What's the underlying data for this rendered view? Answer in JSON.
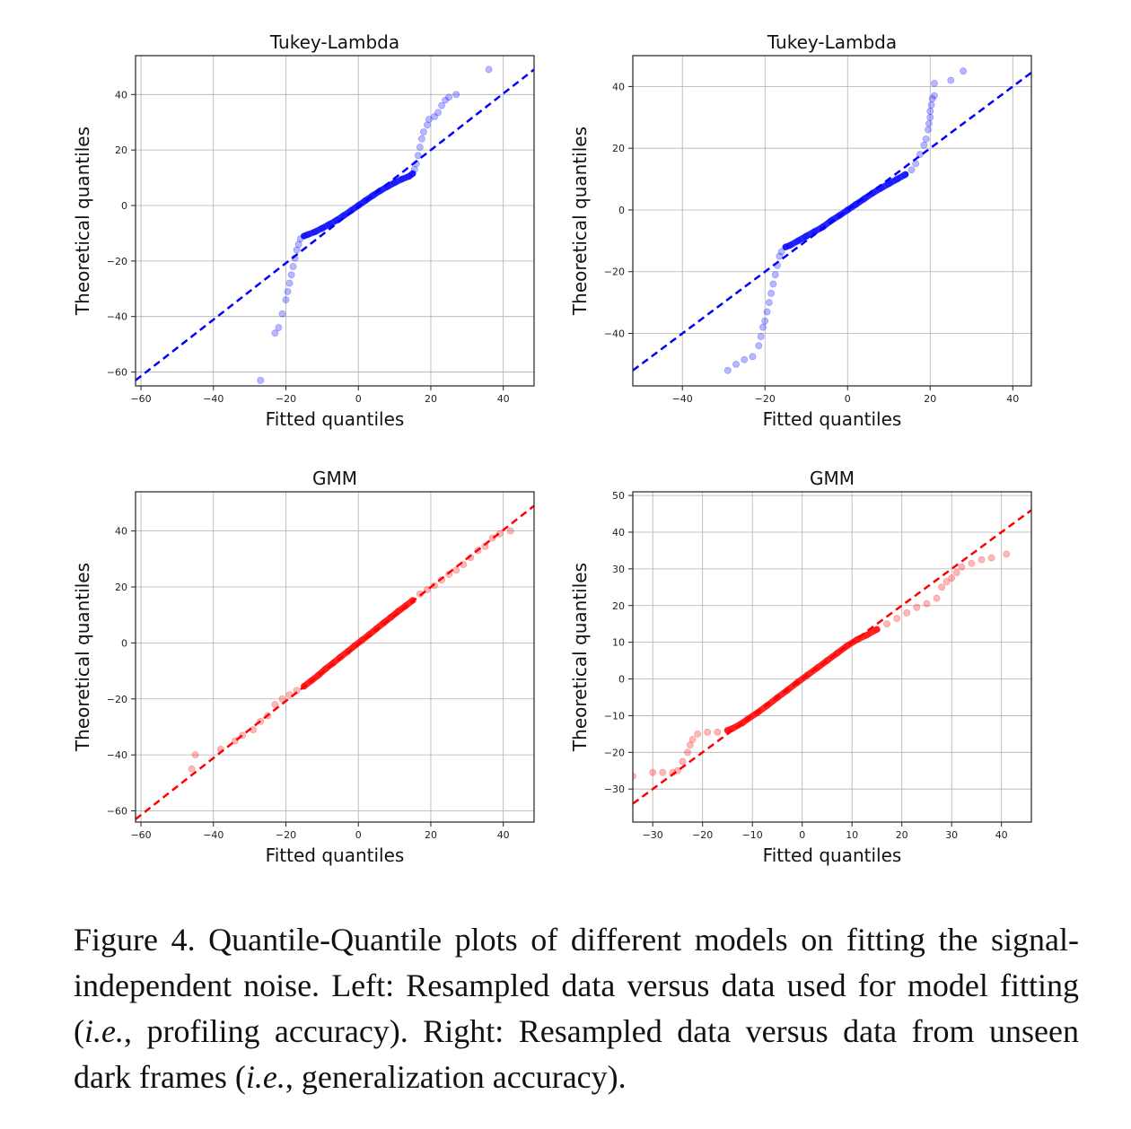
{
  "chart_data": [
    {
      "type": "scatter",
      "title": "Tukey-Lambda",
      "xlabel": "Fitted quantiles",
      "ylabel": "Theoretical quantiles",
      "xlim": [
        -61.5,
        48.5
      ],
      "ylim": [
        -65,
        54
      ],
      "xticks": [
        -60,
        -40,
        -20,
        0,
        20,
        40
      ],
      "yticks": [
        -60,
        -40,
        -20,
        0,
        20,
        40
      ],
      "color": "#0000ff",
      "reference_line": [
        [
          -61.5,
          -63
        ],
        [
          48.5,
          49
        ]
      ],
      "points": [
        [
          -27,
          -63
        ],
        [
          -23,
          -46
        ],
        [
          -22,
          -44
        ],
        [
          -21,
          -39
        ],
        [
          -20,
          -34
        ],
        [
          -19.5,
          -31
        ],
        [
          -19,
          -28
        ],
        [
          -18.5,
          -25
        ],
        [
          -18,
          -22
        ],
        [
          -17.5,
          -19
        ],
        [
          -17,
          -16
        ],
        [
          -16.5,
          -14
        ],
        [
          -16,
          -12
        ],
        [
          -15,
          -11
        ],
        [
          -14,
          -10.5
        ],
        [
          -12,
          -9.5
        ],
        [
          -10,
          -8.2
        ],
        [
          -8,
          -6.8
        ],
        [
          -6,
          -5.3
        ],
        [
          -4,
          -3.6
        ],
        [
          -2,
          -1.8
        ],
        [
          0,
          0
        ],
        [
          2,
          1.8
        ],
        [
          4,
          3.6
        ],
        [
          6,
          5.3
        ],
        [
          8,
          6.8
        ],
        [
          10,
          8.2
        ],
        [
          12,
          9.5
        ],
        [
          14,
          10.5
        ],
        [
          15,
          11.5
        ],
        [
          15.5,
          13
        ],
        [
          16,
          15
        ],
        [
          16.5,
          18
        ],
        [
          17,
          21
        ],
        [
          17.5,
          24
        ],
        [
          18,
          26.5
        ],
        [
          19,
          29
        ],
        [
          19.5,
          31
        ],
        [
          21,
          32
        ],
        [
          22,
          33.5
        ],
        [
          23,
          36
        ],
        [
          24,
          38
        ],
        [
          25,
          39
        ],
        [
          27,
          40
        ],
        [
          36,
          49
        ]
      ]
    },
    {
      "type": "scatter",
      "title": "Tukey-Lambda",
      "xlabel": "Fitted quantiles",
      "ylabel": "Theoretical quantiles",
      "xlim": [
        -52,
        44.5
      ],
      "ylim": [
        -57,
        50
      ],
      "xticks": [
        -40,
        -20,
        0,
        20,
        40
      ],
      "yticks": [
        -40,
        -20,
        0,
        20,
        40
      ],
      "color": "#0000ff",
      "reference_line": [
        [
          -52,
          -52
        ],
        [
          44.5,
          44.5
        ]
      ],
      "points": [
        [
          -29,
          -52
        ],
        [
          -27,
          -50
        ],
        [
          -25,
          -48.5
        ],
        [
          -23,
          -47.5
        ],
        [
          -21.5,
          -44
        ],
        [
          -21,
          -41
        ],
        [
          -20.5,
          -38
        ],
        [
          -20,
          -36
        ],
        [
          -19.5,
          -33
        ],
        [
          -19,
          -30
        ],
        [
          -18.5,
          -27
        ],
        [
          -18,
          -24
        ],
        [
          -17.5,
          -21
        ],
        [
          -17,
          -18
        ],
        [
          -16.5,
          -15
        ],
        [
          -16,
          -13.5
        ],
        [
          -15,
          -12
        ],
        [
          -14,
          -11.5
        ],
        [
          -12,
          -10
        ],
        [
          -10,
          -8.5
        ],
        [
          -8,
          -7
        ],
        [
          -6,
          -5.5
        ],
        [
          -4,
          -3.5
        ],
        [
          -2,
          -1.8
        ],
        [
          0,
          0
        ],
        [
          2,
          1.8
        ],
        [
          4,
          3.6
        ],
        [
          6,
          5.4
        ],
        [
          8,
          7
        ],
        [
          10,
          8.5
        ],
        [
          12,
          10
        ],
        [
          14,
          11.5
        ],
        [
          15.5,
          13
        ],
        [
          16.5,
          15
        ],
        [
          17.5,
          18
        ],
        [
          18.5,
          21
        ],
        [
          19,
          23
        ],
        [
          19.5,
          26
        ],
        [
          19.7,
          28
        ],
        [
          20,
          30
        ],
        [
          20,
          32
        ],
        [
          20.3,
          34
        ],
        [
          20.5,
          36
        ],
        [
          21,
          37
        ],
        [
          21,
          41
        ],
        [
          25,
          42
        ],
        [
          28,
          45
        ]
      ]
    },
    {
      "type": "scatter",
      "title": "GMM",
      "xlabel": "Fitted quantiles",
      "ylabel": "Theoretical quantiles",
      "xlim": [
        -61.5,
        48.5
      ],
      "ylim": [
        -64,
        54
      ],
      "xticks": [
        -60,
        -40,
        -20,
        0,
        20,
        40
      ],
      "yticks": [
        -60,
        -40,
        -20,
        0,
        20,
        40
      ],
      "color": "#ff0000",
      "reference_line": [
        [
          -61.5,
          -63
        ],
        [
          48.5,
          49
        ]
      ],
      "points": [
        [
          -46,
          -45
        ],
        [
          -45,
          -40
        ],
        [
          -38,
          -38
        ],
        [
          -34,
          -35
        ],
        [
          -32,
          -33
        ],
        [
          -29,
          -31
        ],
        [
          -27,
          -28
        ],
        [
          -25,
          -26
        ],
        [
          -23,
          -22
        ],
        [
          -21,
          -20
        ],
        [
          -19,
          -18.5
        ],
        [
          -17,
          -17
        ],
        [
          -15,
          -15.5
        ],
        [
          -13,
          -13.5
        ],
        [
          -11,
          -11.5
        ],
        [
          -9,
          -9.2
        ],
        [
          -7,
          -7.2
        ],
        [
          -5,
          -5.1
        ],
        [
          -3,
          -3.1
        ],
        [
          -1,
          -1
        ],
        [
          1,
          1
        ],
        [
          3,
          3
        ],
        [
          5,
          5.1
        ],
        [
          7,
          7.2
        ],
        [
          9,
          9.2
        ],
        [
          11,
          11.3
        ],
        [
          13,
          13.2
        ],
        [
          15,
          15.2
        ],
        [
          17,
          17.5
        ],
        [
          19,
          19
        ],
        [
          21,
          20.5
        ],
        [
          23,
          22.5
        ],
        [
          25,
          24.5
        ],
        [
          27,
          26
        ],
        [
          29,
          28
        ],
        [
          31,
          30.5
        ],
        [
          33,
          33
        ],
        [
          35,
          34.5
        ],
        [
          37,
          37.5
        ],
        [
          39,
          39
        ],
        [
          42,
          40
        ]
      ]
    },
    {
      "type": "scatter",
      "title": "GMM",
      "xlabel": "Fitted quantiles",
      "ylabel": "Theoretical quantiles",
      "xlim": [
        -34,
        46
      ],
      "ylim": [
        -39,
        51
      ],
      "xticks": [
        -30,
        -20,
        -10,
        0,
        10,
        20,
        30,
        40
      ],
      "yticks": [
        -30,
        -20,
        -10,
        0,
        10,
        20,
        30,
        40,
        50
      ],
      "color": "#ff0000",
      "reference_line": [
        [
          -34,
          -34
        ],
        [
          46,
          46
        ]
      ],
      "points": [
        [
          -34,
          -26.5
        ],
        [
          -30,
          -25.5
        ],
        [
          -28,
          -25.5
        ],
        [
          -26,
          -25.5
        ],
        [
          -25,
          -25
        ],
        [
          -24,
          -22.5
        ],
        [
          -23,
          -20
        ],
        [
          -22.5,
          -18
        ],
        [
          -22,
          -16.5
        ],
        [
          -21,
          -15
        ],
        [
          -19,
          -14.5
        ],
        [
          -17,
          -14.5
        ],
        [
          -15,
          -14
        ],
        [
          -14,
          -13.5
        ],
        [
          -12,
          -12
        ],
        [
          -11,
          -11
        ],
        [
          -9,
          -9.2
        ],
        [
          -7,
          -7.2
        ],
        [
          -5,
          -5.1
        ],
        [
          -3,
          -3.1
        ],
        [
          -1,
          -1
        ],
        [
          1,
          1
        ],
        [
          3,
          3
        ],
        [
          5,
          5
        ],
        [
          7,
          7
        ],
        [
          9,
          9
        ],
        [
          11,
          10.7
        ],
        [
          13,
          12
        ],
        [
          15,
          13.5
        ],
        [
          17,
          15
        ],
        [
          19,
          16.5
        ],
        [
          21,
          18
        ],
        [
          23,
          19.5
        ],
        [
          25,
          20.5
        ],
        [
          27,
          22
        ],
        [
          28,
          25
        ],
        [
          29,
          26.5
        ],
        [
          30,
          27.5
        ],
        [
          31,
          29
        ],
        [
          32,
          30.5
        ],
        [
          34,
          31.5
        ],
        [
          36,
          32.5
        ],
        [
          38,
          33
        ],
        [
          41,
          34
        ]
      ]
    }
  ],
  "caption": {
    "label": "Figure 4.",
    "part1": " Quantile-Quantile plots of different models on fitting the signal-independent noise. Left: Resampled data versus data used for model fitting (",
    "ie1": "i.e.",
    "part2": ", profiling accuracy). Right: Resampled data versus data from unseen dark frames (",
    "ie2": "i.e.",
    "part3": ", generalization accuracy)."
  }
}
